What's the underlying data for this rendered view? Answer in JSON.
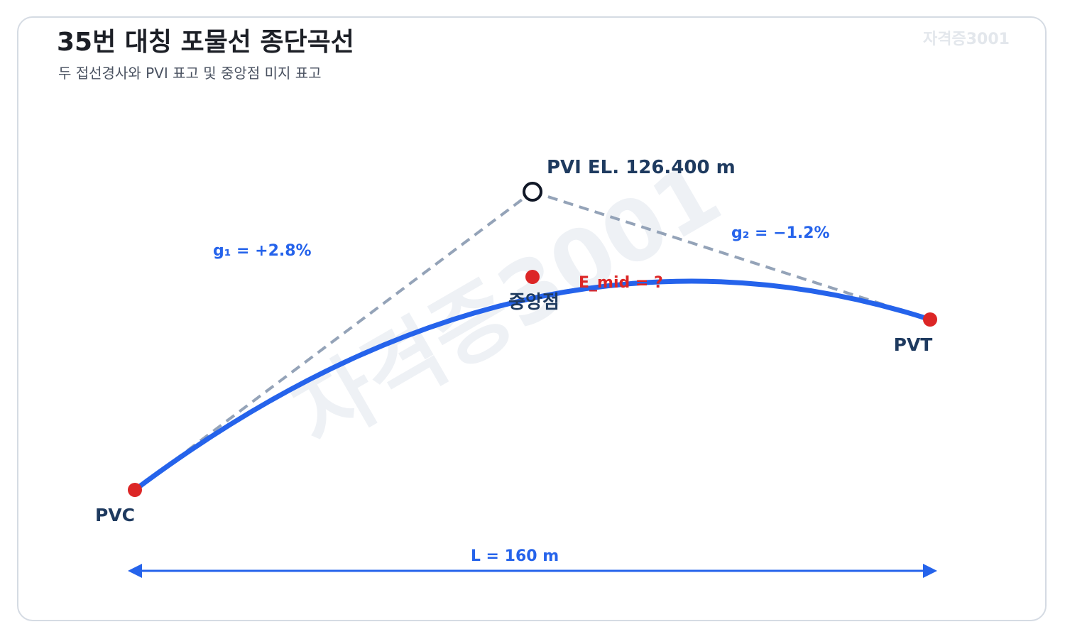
{
  "header": {
    "title": "35번 대칭 포물선 종단곡선",
    "subtitle": "두 접선경사와 PVI 표고 및 중앙점 미지 표고",
    "corner_mark": "자격증3001"
  },
  "watermark": "자격증3001",
  "diagram": {
    "pvi_label": "PVI EL. 126.400 m",
    "g1_label": "g₁ = +2.8%",
    "g2_label": "g₂ = −1.2%",
    "pvc_label": "PVC",
    "pvt_label": "PVT",
    "midpoint_label": "중앙점",
    "e_mid_label": "E_mid = ?",
    "length_label": "L = 160 m"
  },
  "colors": {
    "curve": "#2563eb",
    "tangent": "#94a3b8",
    "point": "#dc2626",
    "pvi_ring": "#111827",
    "label_dark": "#1e3a5f",
    "grade_label": "#2563eb",
    "e_mid_label": "#dc2626",
    "dimension": "#2563eb"
  }
}
